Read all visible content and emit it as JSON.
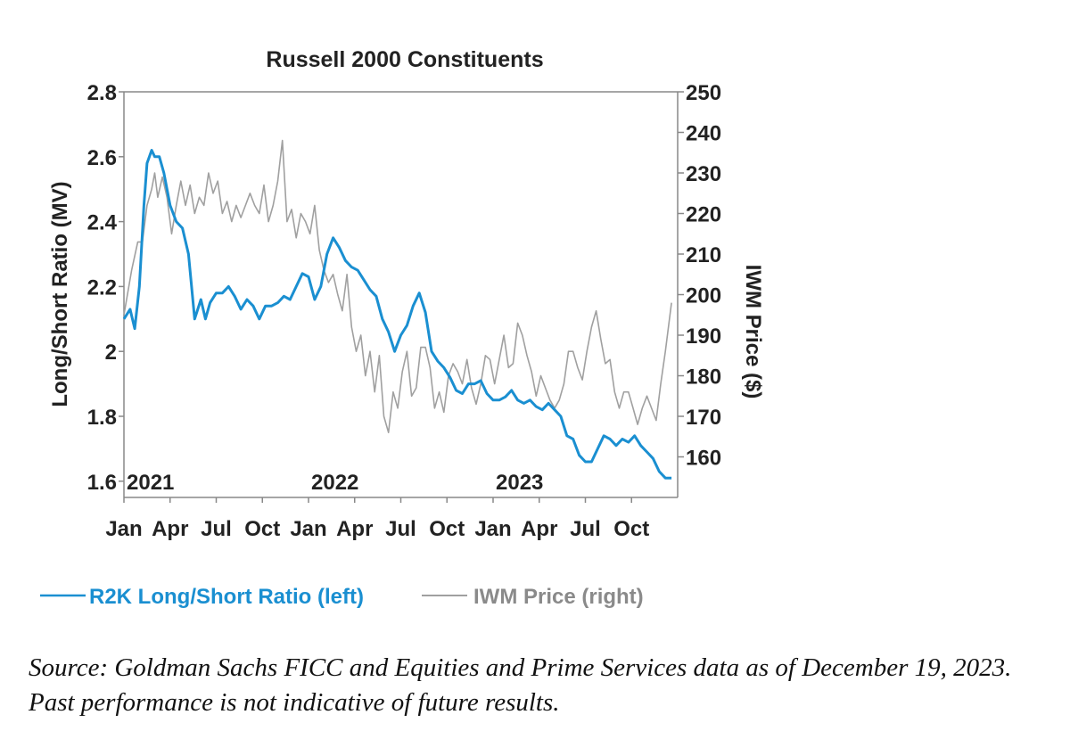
{
  "chart_data": {
    "type": "line",
    "title": "Russell 2000 Constituents",
    "ylabel_left": "Long/Short Ratio (MV)",
    "ylabel_right": "IWM Price ($)",
    "ylim_left": [
      1.55,
      2.8
    ],
    "ylim_right": [
      150,
      250
    ],
    "yticks_left": [
      "2.8",
      "2.6",
      "2.4",
      "2.2",
      "2",
      "1.8",
      "1.6"
    ],
    "yticks_left_values": [
      2.8,
      2.6,
      2.4,
      2.2,
      2.0,
      1.8,
      1.6
    ],
    "yticks_right": [
      "250",
      "240",
      "230",
      "220",
      "210",
      "200",
      "190",
      "180",
      "170",
      "160"
    ],
    "yticks_right_values": [
      250,
      240,
      230,
      220,
      210,
      200,
      190,
      180,
      170,
      160
    ],
    "xlim_months": [
      0,
      36
    ],
    "xticks": [
      "Jan",
      "Apr",
      "Jul",
      "Oct",
      "Jan",
      "Apr",
      "Jul",
      "Oct",
      "Jan",
      "Apr",
      "Jul",
      "Oct"
    ],
    "xticks_months": [
      0,
      3,
      6,
      9,
      12,
      15,
      18,
      21,
      24,
      27,
      30,
      33
    ],
    "year_labels": [
      "2021",
      "2022",
      "2023"
    ],
    "year_label_months": [
      0,
      12,
      24
    ],
    "series": [
      {
        "name": "R2K Long/Short Ratio (left)",
        "axis": "left",
        "color": "#1a8fd1",
        "x": [
          0,
          0.4,
          0.7,
          1.0,
          1.3,
          1.5,
          1.8,
          2.0,
          2.3,
          2.6,
          3.0,
          3.4,
          3.8,
          4.2,
          4.6,
          5.0,
          5.3,
          5.6,
          6.0,
          6.4,
          6.8,
          7.2,
          7.6,
          8.0,
          8.4,
          8.8,
          9.2,
          9.6,
          10.0,
          10.4,
          10.8,
          11.2,
          11.6,
          12.0,
          12.4,
          12.8,
          13.2,
          13.6,
          14.0,
          14.4,
          14.8,
          15.2,
          15.6,
          16.0,
          16.4,
          16.8,
          17.2,
          17.6,
          18.0,
          18.4,
          18.8,
          19.2,
          19.6,
          20.0,
          20.4,
          20.8,
          21.2,
          21.6,
          22.0,
          22.4,
          22.8,
          23.2,
          23.6,
          24.0,
          24.4,
          24.8,
          25.2,
          25.6,
          26.0,
          26.4,
          26.8,
          27.2,
          27.6,
          28.0,
          28.4,
          28.8,
          29.2,
          29.6,
          30.0,
          30.4,
          30.8,
          31.2,
          31.6,
          32.0,
          32.4,
          32.8,
          33.2,
          33.6,
          34.0,
          34.4,
          34.8,
          35.2,
          35.6
        ],
        "values": [
          2.1,
          2.13,
          2.07,
          2.2,
          2.45,
          2.58,
          2.62,
          2.6,
          2.6,
          2.55,
          2.45,
          2.4,
          2.38,
          2.3,
          2.1,
          2.16,
          2.1,
          2.15,
          2.18,
          2.18,
          2.2,
          2.17,
          2.13,
          2.16,
          2.14,
          2.1,
          2.14,
          2.14,
          2.15,
          2.17,
          2.16,
          2.2,
          2.24,
          2.23,
          2.16,
          2.2,
          2.3,
          2.35,
          2.32,
          2.28,
          2.26,
          2.25,
          2.22,
          2.19,
          2.17,
          2.1,
          2.06,
          2.0,
          2.05,
          2.08,
          2.14,
          2.18,
          2.12,
          2.0,
          1.97,
          1.95,
          1.92,
          1.88,
          1.87,
          1.9,
          1.9,
          1.91,
          1.87,
          1.85,
          1.85,
          1.86,
          1.88,
          1.85,
          1.84,
          1.85,
          1.83,
          1.82,
          1.84,
          1.82,
          1.8,
          1.74,
          1.73,
          1.68,
          1.66,
          1.66,
          1.7,
          1.74,
          1.73,
          1.71,
          1.73,
          1.72,
          1.74,
          1.71,
          1.69,
          1.67,
          1.63,
          1.61,
          1.61
        ]
      },
      {
        "name": "IWM Price (right)",
        "axis": "right",
        "color": "#a0a0a0",
        "x": [
          0,
          0.5,
          0.9,
          1.2,
          1.5,
          1.8,
          2.0,
          2.2,
          2.5,
          2.8,
          3.1,
          3.4,
          3.7,
          4.0,
          4.3,
          4.6,
          4.9,
          5.2,
          5.5,
          5.8,
          6.1,
          6.4,
          6.7,
          7.0,
          7.3,
          7.6,
          7.9,
          8.2,
          8.5,
          8.8,
          9.1,
          9.4,
          9.7,
          10.0,
          10.3,
          10.6,
          10.9,
          11.2,
          11.5,
          11.8,
          12.1,
          12.4,
          12.7,
          13.0,
          13.3,
          13.6,
          13.9,
          14.2,
          14.5,
          14.8,
          15.1,
          15.4,
          15.7,
          16.0,
          16.3,
          16.6,
          16.9,
          17.2,
          17.5,
          17.8,
          18.1,
          18.4,
          18.7,
          19.0,
          19.3,
          19.6,
          19.9,
          20.2,
          20.5,
          20.8,
          21.1,
          21.4,
          21.7,
          22.0,
          22.3,
          22.6,
          22.9,
          23.2,
          23.5,
          23.8,
          24.1,
          24.4,
          24.7,
          25.0,
          25.3,
          25.6,
          25.9,
          26.2,
          26.5,
          26.8,
          27.1,
          27.4,
          27.7,
          28.0,
          28.3,
          28.6,
          28.9,
          29.2,
          29.5,
          29.8,
          30.1,
          30.4,
          30.7,
          31.0,
          31.3,
          31.6,
          31.9,
          32.2,
          32.5,
          32.8,
          33.1,
          33.4,
          33.7,
          34.0,
          34.3,
          34.6,
          34.9,
          35.2,
          35.6
        ],
        "values": [
          195,
          206,
          213,
          213,
          222,
          226,
          230,
          224,
          229,
          224,
          215,
          222,
          228,
          222,
          227,
          220,
          224,
          222,
          230,
          225,
          228,
          220,
          223,
          218,
          222,
          219,
          222,
          225,
          222,
          220,
          227,
          218,
          222,
          228,
          238,
          218,
          221,
          214,
          220,
          218,
          215,
          222,
          211,
          206,
          203,
          205,
          200,
          196,
          205,
          192,
          186,
          190,
          180,
          186,
          176,
          185,
          170,
          166,
          176,
          172,
          181,
          186,
          175,
          177,
          187,
          187,
          182,
          172,
          176,
          171,
          180,
          183,
          181,
          178,
          184,
          177,
          173,
          178,
          185,
          184,
          178,
          184,
          190,
          182,
          183,
          193,
          190,
          185,
          181,
          175,
          180,
          177,
          174,
          172,
          174,
          178,
          186,
          186,
          182,
          179,
          186,
          192,
          196,
          189,
          183,
          184,
          176,
          172,
          176,
          176,
          172,
          168,
          172,
          175,
          172,
          169,
          178,
          186,
          198
        ]
      }
    ],
    "legend": [
      "R2K Long/Short Ratio (left)",
      "IWM Price (right)"
    ],
    "legend_position": "bottom",
    "grid": false
  },
  "source_note": "Source: Goldman Sachs FICC and Equities and Prime Services data as of December 19, 2023. Past performance is not indicative of future results."
}
